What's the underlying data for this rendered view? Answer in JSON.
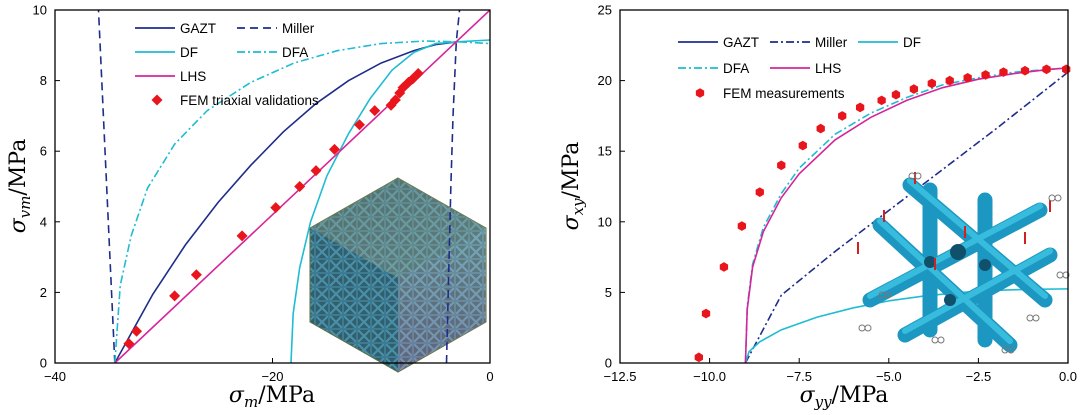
{
  "chart_data": [
    {
      "type": "line",
      "xlabel_symbol": "σ",
      "xlabel_sub": "m",
      "xlabel_unit": "/MPa",
      "ylabel_symbol": "σ",
      "ylabel_sub": "vm",
      "ylabel_unit": "/MPa",
      "xlim": [
        -40,
        0
      ],
      "ylim": [
        0,
        10
      ],
      "xticks": [
        -40,
        -20,
        0
      ],
      "yticks": [
        0,
        2,
        4,
        6,
        8,
        10
      ],
      "legend_placement": "top-center",
      "inset": "lattice cube image (bottom-right)",
      "series": [
        {
          "name": "GAZT",
          "color": "#1f2d8a",
          "dash": "solid",
          "x": [
            -34.5,
            -31,
            -28,
            -25,
            -22,
            -19,
            -16,
            -13,
            -10,
            -7,
            -5,
            -3
          ],
          "y": [
            0,
            1.95,
            3.35,
            4.55,
            5.6,
            6.55,
            7.35,
            8.0,
            8.5,
            8.85,
            9.02,
            9.1
          ]
        },
        {
          "name": "Miller",
          "color": "#1f2d8a",
          "dash": "8,5",
          "branches": [
            {
              "x": [
                -34.5,
                -34.8,
                -35.1,
                -35.4,
                -35.7,
                -36.0
              ],
              "y": [
                0,
                2.0,
                4.0,
                6.0,
                8.0,
                10.0
              ]
            },
            {
              "x": [
                -4.0,
                -3.8,
                -3.6,
                -3.4,
                -3.1,
                -2.8
              ],
              "y": [
                0,
                2.5,
                5.0,
                7.0,
                9.1,
                10.0
              ]
            }
          ]
        },
        {
          "name": "DF",
          "color": "#1fbcd2",
          "dash": "solid",
          "x": [
            -18.3,
            -18.1,
            -17.5,
            -16.5,
            -15,
            -13,
            -11,
            -9,
            -7,
            -5,
            -3,
            0
          ],
          "y": [
            0,
            1.4,
            2.7,
            4.0,
            5.3,
            6.5,
            7.5,
            8.3,
            8.8,
            9.05,
            9.1,
            9.15
          ]
        },
        {
          "name": "DFA",
          "color": "#1fbcd2",
          "dash": "8,3,2,3",
          "x": [
            -34.5,
            -34,
            -33,
            -31.5,
            -29,
            -26,
            -22,
            -18,
            -14,
            -10,
            -6,
            -3,
            0
          ],
          "y": [
            0,
            2.2,
            3.6,
            4.95,
            6.2,
            7.15,
            7.95,
            8.5,
            8.85,
            9.05,
            9.12,
            9.1,
            9.05
          ]
        },
        {
          "name": "LHS",
          "color": "#d6249a",
          "dash": "solid",
          "x": [
            -34.5,
            0
          ],
          "y": [
            0,
            10
          ]
        },
        {
          "name": "FEM triaxial validations",
          "color": "#e8161c",
          "marker": "diamond",
          "x": [
            -33.2,
            -32.5,
            -29,
            -27,
            -22.8,
            -19.7,
            -17.5,
            -16,
            -14.3,
            -12,
            -10.6,
            -9.1,
            -8.7,
            -8.3,
            -8,
            -7.5,
            -7.1,
            -6.6
          ],
          "y": [
            0.55,
            0.9,
            1.9,
            2.5,
            3.6,
            4.4,
            5.0,
            5.45,
            6.05,
            6.75,
            7.15,
            7.3,
            7.45,
            7.65,
            7.8,
            7.95,
            8.05,
            8.2
          ]
        }
      ]
    },
    {
      "type": "line",
      "xlabel_symbol": "σ",
      "xlabel_sub": "yy",
      "xlabel_unit": "/MPa",
      "ylabel_symbol": "σ",
      "ylabel_sub": "xy",
      "ylabel_unit": "/MPa",
      "xlim": [
        -12.5,
        0
      ],
      "ylim": [
        0,
        25
      ],
      "xticks": [
        -12.5,
        -10.0,
        -7.5,
        -5.0,
        -2.5,
        0.0
      ],
      "yticks": [
        0,
        5,
        10,
        15,
        20,
        25
      ],
      "xtick_labels": [
        "−12.5",
        "−10.0",
        "−7.5",
        "−5.0",
        "−2.5",
        "0.0"
      ],
      "legend_placement": "top-center",
      "inset": "lattice structure with boundary conditions (bottom-right)",
      "series": [
        {
          "name": "GAZT",
          "color": "#1f2d8a",
          "dash": "solid",
          "x": [],
          "y": []
        },
        {
          "name": "Miller",
          "color": "#1f2d8a",
          "dash": "8,3,2,3",
          "x": [
            -9.0,
            -8.0,
            -6.5,
            -5.0,
            -3.5,
            -2.0,
            0
          ],
          "y": [
            0,
            4.8,
            7.9,
            10.8,
            13.7,
            16.6,
            20.6
          ]
        },
        {
          "name": "DF",
          "color": "#1fbcd2",
          "dash": "solid",
          "x": [
            -9.0,
            -8.9,
            -8.6,
            -8.0,
            -7.0,
            -6.0,
            -5.0,
            -4.0,
            -3.0,
            -2.0,
            -1.0,
            0
          ],
          "y": [
            0,
            0.8,
            1.5,
            2.35,
            3.25,
            3.9,
            4.4,
            4.75,
            5.0,
            5.15,
            5.22,
            5.25
          ]
        },
        {
          "name": "DFA",
          "color": "#1fbcd2",
          "dash": "8,3,2,3",
          "x": [
            -9.0,
            -8.95,
            -8.8,
            -8.5,
            -8.0,
            -7.5,
            -6.5,
            -5.5,
            -4.5,
            -3.5,
            -2.5,
            -1.5,
            -0.5,
            0
          ],
          "y": [
            0,
            4.0,
            7.0,
            9.6,
            12.0,
            13.8,
            16.2,
            17.7,
            18.8,
            19.7,
            20.2,
            20.6,
            20.8,
            20.9
          ]
        },
        {
          "name": "LHS",
          "color": "#d6249a",
          "dash": "solid",
          "x": [
            -9.0,
            -8.95,
            -8.8,
            -8.5,
            -8.0,
            -7.5,
            -6.5,
            -5.5,
            -4.5,
            -3.5,
            -2.5,
            -1.5,
            -0.5,
            0
          ],
          "y": [
            0,
            3.8,
            6.8,
            9.3,
            11.7,
            13.4,
            15.8,
            17.4,
            18.6,
            19.5,
            20.1,
            20.5,
            20.8,
            20.9
          ]
        },
        {
          "name": "FEM measurements",
          "color": "#e8161c",
          "marker": "hexagon",
          "x": [
            -10.3,
            -10.1,
            -9.6,
            -9.1,
            -8.6,
            -8.0,
            -7.4,
            -6.9,
            -6.3,
            -5.8,
            -5.2,
            -4.8,
            -4.3,
            -3.8,
            -3.3,
            -2.8,
            -2.3,
            -1.8,
            -1.2,
            -0.6,
            -0.05
          ],
          "y": [
            0.4,
            3.5,
            6.8,
            9.7,
            12.1,
            14.0,
            15.4,
            16.6,
            17.5,
            18.1,
            18.6,
            19.0,
            19.4,
            19.8,
            20.0,
            20.2,
            20.4,
            20.6,
            20.7,
            20.8,
            20.8
          ]
        }
      ]
    }
  ]
}
